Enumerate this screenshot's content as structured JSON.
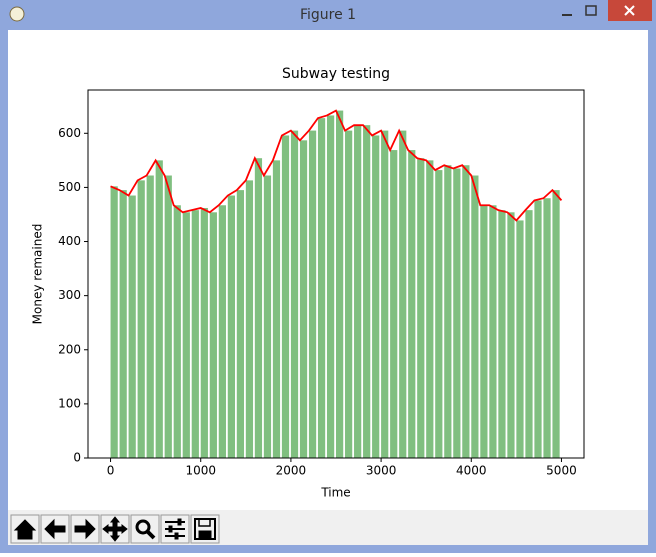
{
  "window": {
    "title": "Figure 1"
  },
  "chart_data": {
    "type": "bar",
    "title": "Subway testing",
    "x_label": "Time",
    "y_label": "Money remained",
    "x": [
      0,
      100,
      200,
      300,
      400,
      500,
      600,
      700,
      800,
      900,
      1000,
      1100,
      1200,
      1300,
      1400,
      1500,
      1600,
      1700,
      1800,
      1900,
      2000,
      2100,
      2200,
      2300,
      2400,
      2500,
      2600,
      2700,
      2800,
      2900,
      3000,
      3100,
      3200,
      3300,
      3400,
      3500,
      3600,
      3700,
      3800,
      3900,
      4000,
      4100,
      4200,
      4300,
      4400,
      4500,
      4600,
      4700,
      4800,
      4900
    ],
    "values": [
      502,
      495,
      485,
      513,
      522,
      550,
      522,
      467,
      454,
      458,
      462,
      454,
      467,
      485,
      495,
      513,
      554,
      522,
      550,
      596,
      605,
      587,
      605,
      628,
      633,
      642,
      605,
      615,
      615,
      596,
      605,
      569,
      605,
      569,
      554,
      550,
      532,
      541,
      535,
      541,
      522,
      467,
      467,
      458,
      454,
      439,
      458,
      476,
      480,
      495
    ],
    "color": "#80bf80",
    "line": {
      "color": "#ff0000",
      "x": [
        0,
        100,
        200,
        300,
        400,
        500,
        600,
        700,
        800,
        900,
        1000,
        1100,
        1200,
        1300,
        1400,
        1500,
        1600,
        1700,
        1800,
        1900,
        2000,
        2100,
        2200,
        2300,
        2400,
        2500,
        2600,
        2700,
        2800,
        2900,
        3000,
        3100,
        3200,
        3300,
        3400,
        3500,
        3600,
        3700,
        3800,
        3900,
        4000,
        4100,
        4200,
        4300,
        4400,
        4500,
        4600,
        4700,
        4800,
        4900,
        5000
      ],
      "values": [
        502,
        495,
        485,
        513,
        522,
        550,
        522,
        467,
        454,
        458,
        462,
        454,
        467,
        485,
        495,
        513,
        554,
        522,
        550,
        596,
        605,
        587,
        605,
        628,
        633,
        642,
        605,
        615,
        615,
        596,
        605,
        569,
        605,
        569,
        554,
        550,
        532,
        541,
        535,
        541,
        522,
        467,
        467,
        458,
        454,
        439,
        458,
        476,
        480,
        495,
        476
      ]
    },
    "xlim": [
      -250,
      5250
    ],
    "ylim": [
      0,
      680
    ],
    "xticks": [
      0,
      1000,
      2000,
      3000,
      4000,
      5000
    ],
    "yticks": [
      0,
      100,
      200,
      300,
      400,
      500,
      600
    ]
  }
}
